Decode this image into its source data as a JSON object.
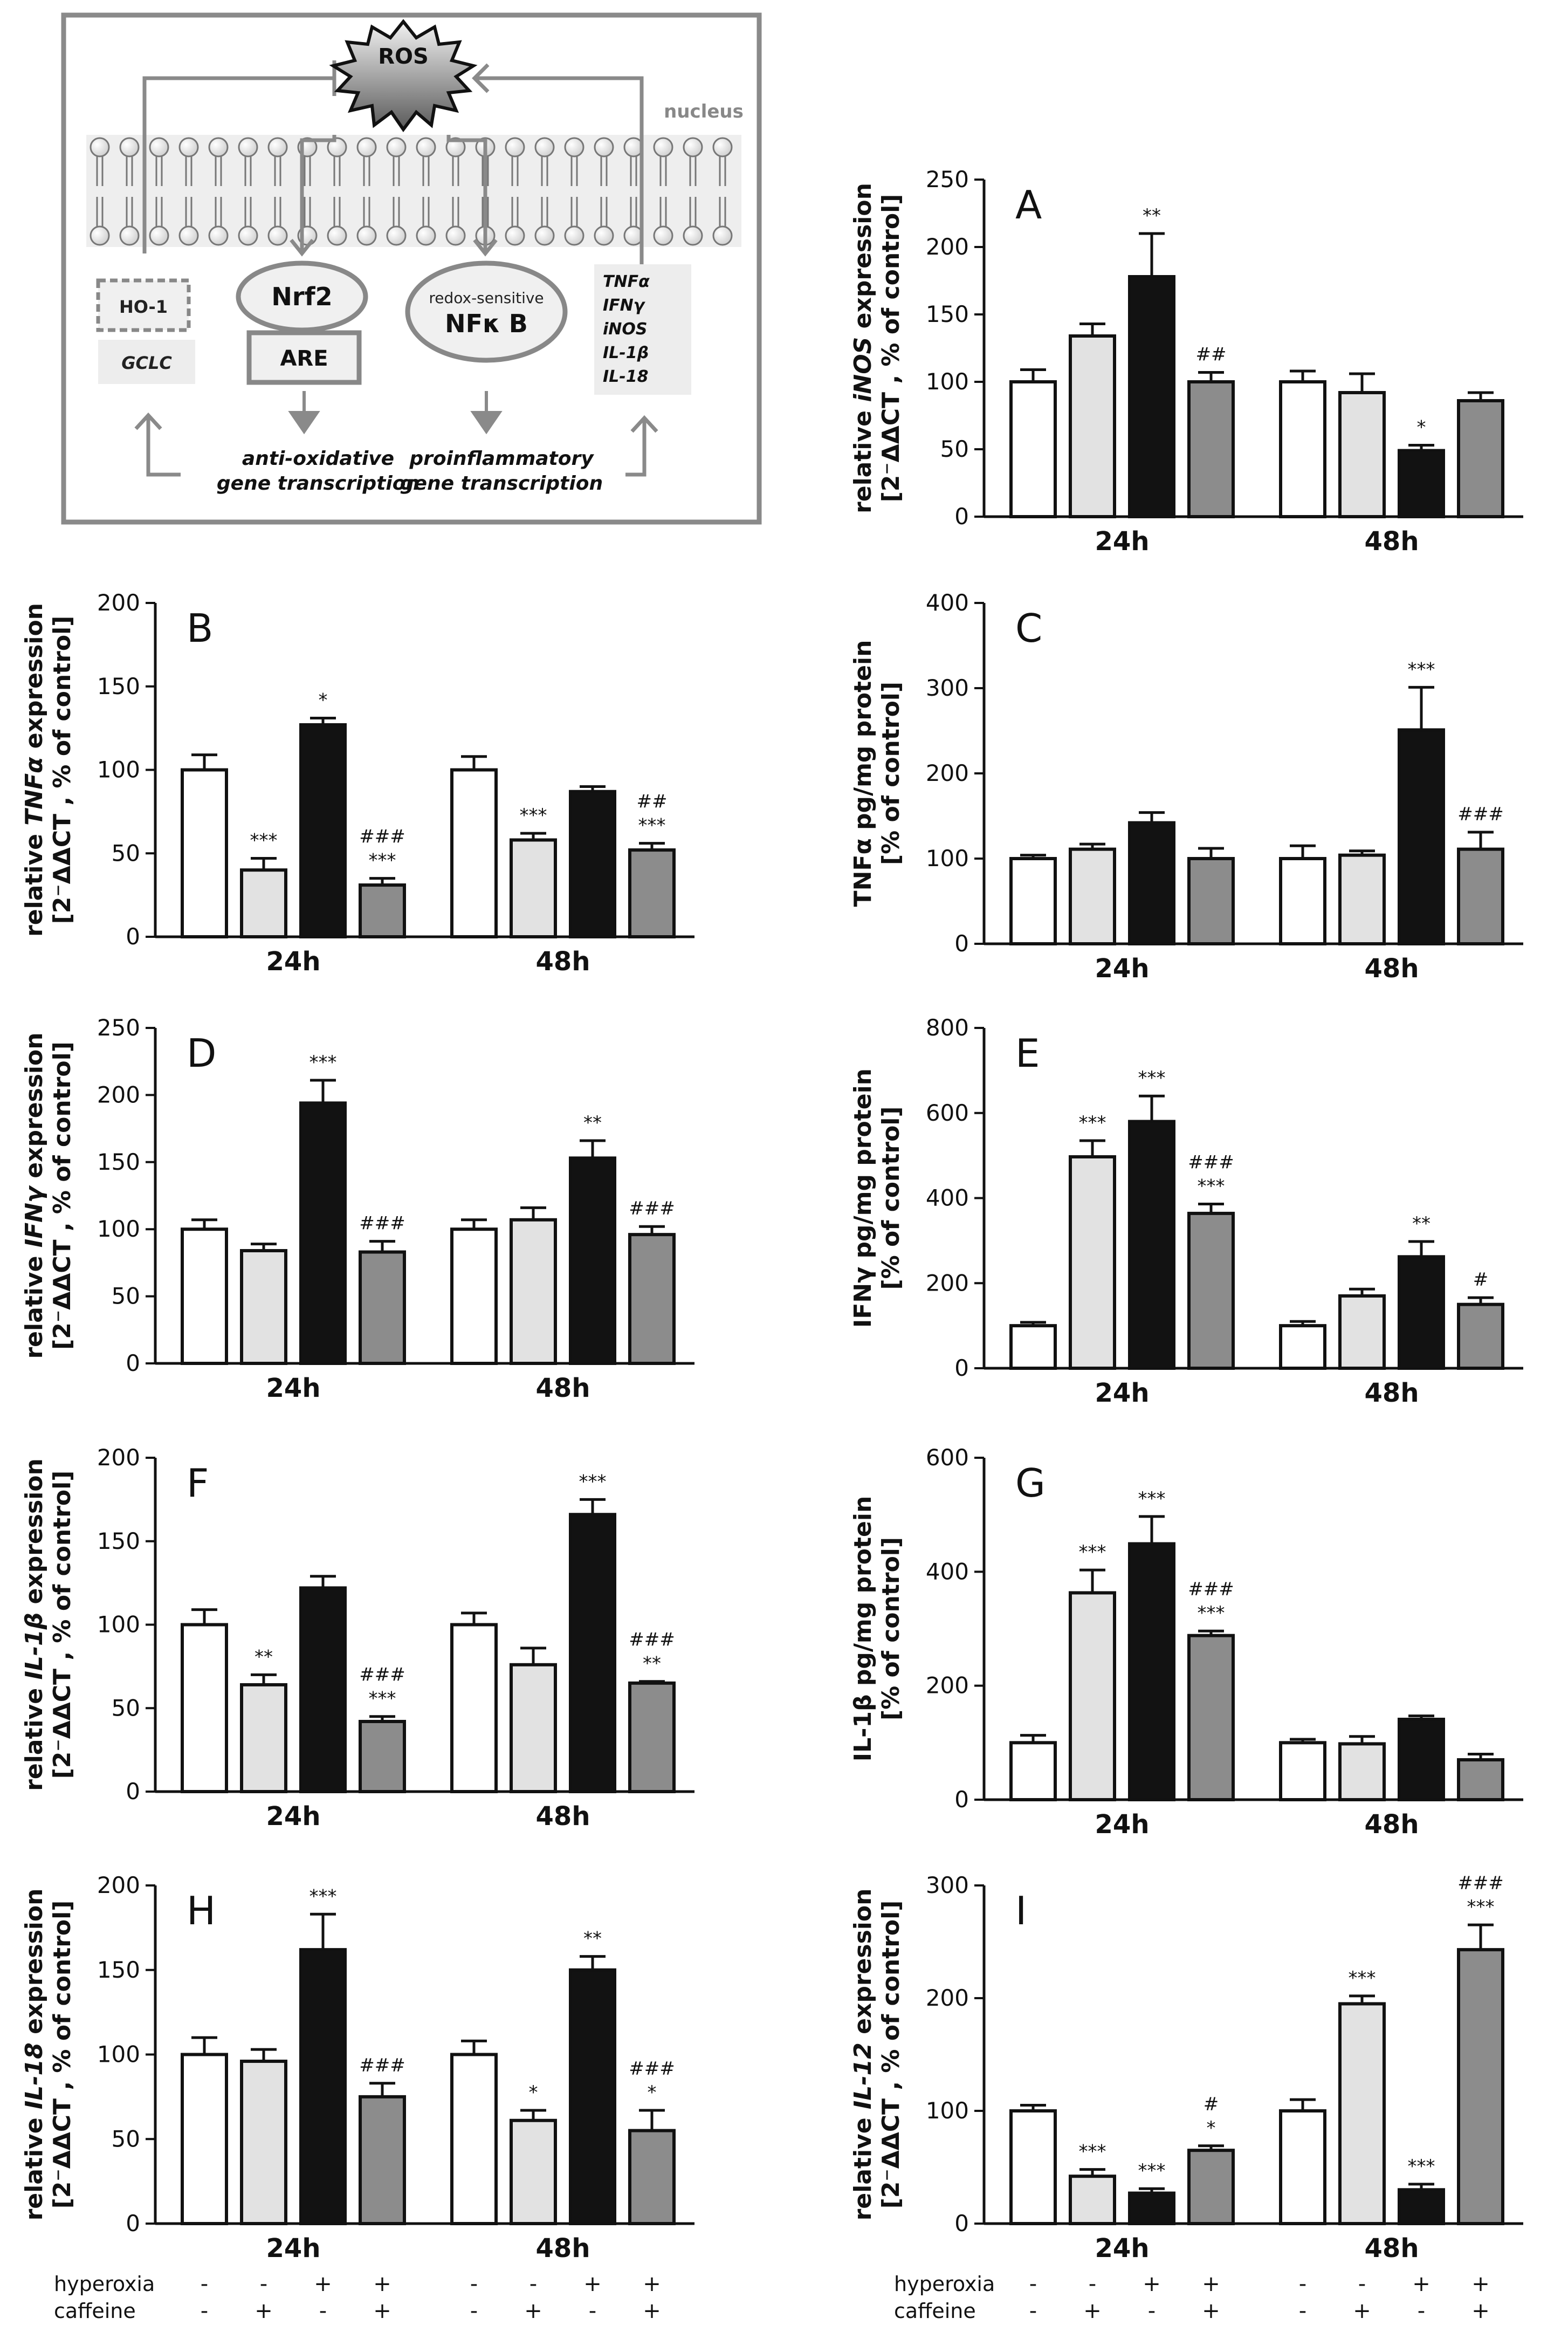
{
  "colors": {
    "control": "#ffffff",
    "caffeine": "#e2e2e2",
    "hyperoxia": "#121212",
    "hyperoxia_caffeine": "#8c8c8c",
    "stroke": "#111111",
    "diagram_border": "#8a8a8a"
  },
  "diagram": {
    "ros": "ROS",
    "nucleus": "nucleus",
    "ho1": "HO-1",
    "gclc": "GCLC",
    "nrf2": "Nrf2",
    "are": "ARE",
    "redox_sensitive": "redox-sensitive",
    "nfkb": "NFκ B",
    "cytokines": [
      "TNFα",
      "IFNγ",
      "iNOS",
      "IL-1β",
      "IL-18"
    ],
    "anti_line1": "anti-oxidative",
    "anti_line2": "gene transcription",
    "pro_line1": "proinflammatory",
    "pro_line2": "gene transcription"
  },
  "legend": {
    "hyperoxia_label": "hyperoxia",
    "caffeine_label": "caffeine",
    "hyperoxia_signs": [
      "-",
      "-",
      "+",
      "+",
      "-",
      "-",
      "+",
      "+"
    ],
    "caffeine_signs": [
      "-",
      "+",
      "-",
      "+",
      "-",
      "+",
      "-",
      "+"
    ]
  },
  "chart_data": [
    {
      "panel": "A",
      "type": "bar",
      "ylabel_pre": "relative ",
      "ylabel_gene": "iNOS",
      "ylabel_post": " expression",
      "ylabel2": "[2⁻ΔΔCT , % of control]",
      "ylim": [
        0,
        250
      ],
      "yticks": [
        "0",
        "50",
        "100",
        "150",
        "200",
        "250"
      ],
      "categories": [
        "24h",
        "48h"
      ],
      "series": [
        {
          "name": "control",
          "values": [
            100,
            100
          ]
        },
        {
          "name": "caffeine",
          "values": [
            134,
            92
          ]
        },
        {
          "name": "hyperoxia",
          "values": [
            178,
            49
          ]
        },
        {
          "name": "hyperoxia+caffeine",
          "values": [
            100,
            86
          ]
        }
      ],
      "errors": [
        [
          9,
          8
        ],
        [
          9,
          14
        ],
        [
          32,
          4
        ],
        [
          7,
          6
        ]
      ],
      "annotations": [
        [
          [
            ""
          ],
          [
            ""
          ]
        ],
        [
          [
            ""
          ],
          [
            ""
          ]
        ],
        [
          [
            "**"
          ],
          [
            "*"
          ]
        ],
        [
          [
            "##"
          ],
          [
            ""
          ]
        ]
      ]
    },
    {
      "panel": "B",
      "type": "bar",
      "ylabel_pre": "relative ",
      "ylabel_gene": "TNFα",
      "ylabel_post": " expression",
      "ylabel2": "[2⁻ΔΔCT , % of control]",
      "ylim": [
        0,
        200
      ],
      "yticks": [
        "0",
        "50",
        "100",
        "150",
        "200"
      ],
      "categories": [
        "24h",
        "48h"
      ],
      "series": [
        {
          "name": "control",
          "values": [
            100,
            100
          ]
        },
        {
          "name": "caffeine",
          "values": [
            40,
            58
          ]
        },
        {
          "name": "hyperoxia",
          "values": [
            127,
            87
          ]
        },
        {
          "name": "hyperoxia+caffeine",
          "values": [
            31,
            52
          ]
        }
      ],
      "errors": [
        [
          9,
          8
        ],
        [
          7,
          4
        ],
        [
          4,
          3
        ],
        [
          4,
          4
        ]
      ],
      "annotations": [
        [
          [
            ""
          ],
          [
            ""
          ]
        ],
        [
          [
            "***"
          ],
          [
            "***"
          ]
        ],
        [
          [
            "*"
          ],
          [
            ""
          ]
        ],
        [
          [
            "###",
            "***"
          ],
          [
            "##",
            "***"
          ]
        ]
      ]
    },
    {
      "panel": "C",
      "type": "bar",
      "ylabel_pre": "TNFα pg/mg protein",
      "ylabel_gene": "",
      "ylabel_post": "",
      "ylabel2": "[% of control]",
      "ylim": [
        0,
        400
      ],
      "yticks": [
        "0",
        "100",
        "200",
        "300",
        "400"
      ],
      "categories": [
        "24h",
        "48h"
      ],
      "series": [
        {
          "name": "control",
          "values": [
            100,
            100
          ]
        },
        {
          "name": "caffeine",
          "values": [
            111,
            104
          ]
        },
        {
          "name": "hyperoxia",
          "values": [
            142,
            251
          ]
        },
        {
          "name": "hyperoxia+caffeine",
          "values": [
            100,
            111
          ]
        }
      ],
      "errors": [
        [
          4,
          15
        ],
        [
          6,
          5
        ],
        [
          12,
          50
        ],
        [
          12,
          20
        ]
      ],
      "annotations": [
        [
          [
            ""
          ],
          [
            ""
          ]
        ],
        [
          [
            ""
          ],
          [
            ""
          ]
        ],
        [
          [
            ""
          ],
          [
            "***"
          ]
        ],
        [
          [
            ""
          ],
          [
            "###"
          ]
        ]
      ]
    },
    {
      "panel": "D",
      "type": "bar",
      "ylabel_pre": "relative ",
      "ylabel_gene": "IFNγ",
      "ylabel_post": " expression",
      "ylabel2": "[2⁻ΔΔCT , % of control]",
      "ylim": [
        0,
        250
      ],
      "yticks": [
        "0",
        "50",
        "100",
        "150",
        "200",
        "250"
      ],
      "categories": [
        "24h",
        "48h"
      ],
      "series": [
        {
          "name": "control",
          "values": [
            100,
            100
          ]
        },
        {
          "name": "caffeine",
          "values": [
            84,
            107
          ]
        },
        {
          "name": "hyperoxia",
          "values": [
            194,
            153
          ]
        },
        {
          "name": "hyperoxia+caffeine",
          "values": [
            83,
            96
          ]
        }
      ],
      "errors": [
        [
          7,
          7
        ],
        [
          5,
          9
        ],
        [
          17,
          13
        ],
        [
          8,
          6
        ]
      ],
      "annotations": [
        [
          [
            ""
          ],
          [
            ""
          ]
        ],
        [
          [
            ""
          ],
          [
            ""
          ]
        ],
        [
          [
            "***"
          ],
          [
            "**"
          ]
        ],
        [
          [
            "###"
          ],
          [
            "###"
          ]
        ]
      ]
    },
    {
      "panel": "E",
      "type": "bar",
      "ylabel_pre": "IFNγ pg/mg protein",
      "ylabel_gene": "",
      "ylabel_post": "",
      "ylabel2": "[% of control]",
      "ylim": [
        0,
        800
      ],
      "yticks": [
        "0",
        "200",
        "400",
        "600",
        "800"
      ],
      "categories": [
        "24h",
        "48h"
      ],
      "series": [
        {
          "name": "control",
          "values": [
            100,
            100
          ]
        },
        {
          "name": "caffeine",
          "values": [
            497,
            170
          ]
        },
        {
          "name": "hyperoxia",
          "values": [
            580,
            262
          ]
        },
        {
          "name": "hyperoxia+caffeine",
          "values": [
            364,
            150
          ]
        }
      ],
      "errors": [
        [
          8,
          10
        ],
        [
          38,
          16
        ],
        [
          60,
          36
        ],
        [
          22,
          16
        ]
      ],
      "annotations": [
        [
          [
            ""
          ],
          [
            ""
          ]
        ],
        [
          [
            "***"
          ],
          [
            ""
          ]
        ],
        [
          [
            "***"
          ],
          [
            "**"
          ]
        ],
        [
          [
            "###",
            "***"
          ],
          [
            "#"
          ]
        ]
      ]
    },
    {
      "panel": "F",
      "type": "bar",
      "ylabel_pre": "relative ",
      "ylabel_gene": "IL-1β",
      "ylabel_post": " expression",
      "ylabel2": "[2⁻ΔΔCT , % of control]",
      "ylim": [
        0,
        200
      ],
      "yticks": [
        "0",
        "50",
        "100",
        "150",
        "200"
      ],
      "categories": [
        "24h",
        "48h"
      ],
      "series": [
        {
          "name": "control",
          "values": [
            100,
            100
          ]
        },
        {
          "name": "caffeine",
          "values": [
            64,
            76
          ]
        },
        {
          "name": "hyperoxia",
          "values": [
            122,
            166
          ]
        },
        {
          "name": "hyperoxia+caffeine",
          "values": [
            42,
            65
          ]
        }
      ],
      "errors": [
        [
          9,
          7
        ],
        [
          6,
          10
        ],
        [
          7,
          9
        ],
        [
          3,
          1
        ]
      ],
      "annotations": [
        [
          [
            ""
          ],
          [
            ""
          ]
        ],
        [
          [
            "**"
          ],
          [
            ""
          ]
        ],
        [
          [
            ""
          ],
          [
            "***"
          ]
        ],
        [
          [
            "###",
            "***"
          ],
          [
            "###",
            "**"
          ]
        ]
      ]
    },
    {
      "panel": "G",
      "type": "bar",
      "ylabel_pre": "IL-1β pg/mg protein",
      "ylabel_gene": "",
      "ylabel_post": "",
      "ylabel2": "[% of control]",
      "ylim": [
        0,
        600
      ],
      "yticks": [
        "0",
        "200",
        "400",
        "600"
      ],
      "categories": [
        "24h",
        "48h"
      ],
      "series": [
        {
          "name": "control",
          "values": [
            100,
            100
          ]
        },
        {
          "name": "caffeine",
          "values": [
            363,
            98
          ]
        },
        {
          "name": "hyperoxia",
          "values": [
            449,
            141
          ]
        },
        {
          "name": "hyperoxia+caffeine",
          "values": [
            288,
            70
          ]
        }
      ],
      "errors": [
        [
          13,
          6
        ],
        [
          40,
          13
        ],
        [
          48,
          6
        ],
        [
          8,
          10
        ]
      ],
      "annotations": [
        [
          [
            ""
          ],
          [
            ""
          ]
        ],
        [
          [
            "***"
          ],
          [
            ""
          ]
        ],
        [
          [
            "***"
          ],
          [
            ""
          ]
        ],
        [
          [
            "###",
            "***"
          ],
          [
            ""
          ]
        ]
      ]
    },
    {
      "panel": "H",
      "type": "bar",
      "ylabel_pre": "relative ",
      "ylabel_gene": "IL-18",
      "ylabel_post": " expression",
      "ylabel2": "[2⁻ΔΔCT , % of control]",
      "ylim": [
        0,
        200
      ],
      "yticks": [
        "0",
        "50",
        "100",
        "150",
        "200"
      ],
      "categories": [
        "24h",
        "48h"
      ],
      "series": [
        {
          "name": "control",
          "values": [
            100,
            100
          ]
        },
        {
          "name": "caffeine",
          "values": [
            96,
            61
          ]
        },
        {
          "name": "hyperoxia",
          "values": [
            162,
            150
          ]
        },
        {
          "name": "hyperoxia+caffeine",
          "values": [
            75,
            55
          ]
        }
      ],
      "errors": [
        [
          10,
          8
        ],
        [
          7,
          6
        ],
        [
          21,
          8
        ],
        [
          8,
          12
        ]
      ],
      "annotations": [
        [
          [
            ""
          ],
          [
            ""
          ]
        ],
        [
          [
            ""
          ],
          [
            "*"
          ]
        ],
        [
          [
            "***"
          ],
          [
            "**"
          ]
        ],
        [
          [
            "###"
          ],
          [
            "###",
            "*"
          ]
        ]
      ]
    },
    {
      "panel": "I",
      "type": "bar",
      "ylabel_pre": "relative ",
      "ylabel_gene": "IL-12",
      "ylabel_post": " expression",
      "ylabel2": "[2⁻ΔΔCT , % of control]",
      "ylim": [
        0,
        300
      ],
      "yticks": [
        "0",
        "100",
        "200",
        "300"
      ],
      "categories": [
        "24h",
        "48h"
      ],
      "series": [
        {
          "name": "control",
          "values": [
            100,
            100
          ]
        },
        {
          "name": "caffeine",
          "values": [
            42,
            195
          ]
        },
        {
          "name": "hyperoxia",
          "values": [
            27,
            30
          ]
        },
        {
          "name": "hyperoxia+caffeine",
          "values": [
            65,
            243
          ]
        }
      ],
      "errors": [
        [
          5,
          10
        ],
        [
          6,
          7
        ],
        [
          4,
          5
        ],
        [
          4,
          22
        ]
      ],
      "annotations": [
        [
          [
            ""
          ],
          [
            ""
          ]
        ],
        [
          [
            "***"
          ],
          [
            "***"
          ]
        ],
        [
          [
            "***"
          ],
          [
            "***"
          ]
        ],
        [
          [
            "#",
            "*"
          ],
          [
            "###",
            "***"
          ]
        ]
      ]
    }
  ]
}
